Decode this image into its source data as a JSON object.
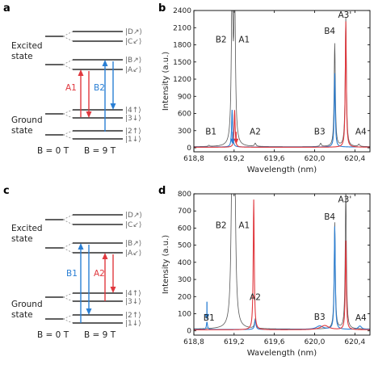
{
  "panels": {
    "a": "a",
    "b": "b",
    "c": "c",
    "d": "d"
  },
  "diagram_a": {
    "excited_label": [
      "Excited",
      "state"
    ],
    "ground_label": [
      "Ground",
      "state"
    ],
    "field_left": "B = 0 T",
    "field_right": "B = 9 T",
    "excited_levels": [
      "|D↗⟩",
      "|C↙⟩",
      "|B↗⟩",
      "|A↙⟩"
    ],
    "ground_levels": [
      "|4↑⟩",
      "|3↓⟩",
      "|2↑⟩",
      "|1↓⟩"
    ],
    "transitions": [
      {
        "name": "A1",
        "color": "#e0383e"
      },
      {
        "name": "B2",
        "color": "#2a7fd4"
      }
    ]
  },
  "diagram_c": {
    "excited_label": [
      "Excited",
      "state"
    ],
    "ground_label": [
      "Ground",
      "state"
    ],
    "field_left": "B = 0 T",
    "field_right": "B = 9 T",
    "excited_levels": [
      "|D↗⟩",
      "|C↙⟩",
      "|B↗⟩",
      "|A↙⟩"
    ],
    "ground_levels": [
      "|4↑⟩",
      "|3↓⟩",
      "|2↑⟩",
      "|1↓⟩"
    ],
    "transitions": [
      {
        "name": "B1",
        "color": "#2a7fd4"
      },
      {
        "name": "A2",
        "color": "#e0383e"
      }
    ]
  },
  "chart_data": [
    {
      "type": "line",
      "xlabel": "Wavelength (nm)",
      "ylabel": "Intensity (a.u.)",
      "xlim": [
        618.8,
        620.55
      ],
      "ylim": [
        -70,
        2400
      ],
      "xticks": [
        "618,8",
        "619,2",
        "619,6",
        "620,0",
        "620,4"
      ],
      "xtick_values": [
        618.8,
        619.2,
        619.6,
        620.0,
        620.4
      ],
      "yticks": [
        "0",
        "300",
        "600",
        "900",
        "1200",
        "1500",
        "1800",
        "2100",
        "2400"
      ],
      "ytick_values": [
        0,
        300,
        600,
        900,
        1200,
        1500,
        1800,
        2100,
        2400
      ],
      "annotations": [
        {
          "text": "B2",
          "x": 619.07,
          "y": 1840
        },
        {
          "text": "A1",
          "x": 619.3,
          "y": 1840
        },
        {
          "text": "B4",
          "x": 620.15,
          "y": 1990
        },
        {
          "text": "A3'",
          "x": 620.3,
          "y": 2270
        },
        {
          "text": "B1",
          "x": 618.97,
          "y": 230
        },
        {
          "text": "A2",
          "x": 619.41,
          "y": 230
        },
        {
          "text": "B3",
          "x": 620.05,
          "y": 230
        },
        {
          "text": "A4",
          "x": 620.46,
          "y": 230
        }
      ],
      "arrows": [
        {
          "color": "#2a7fd4",
          "x": 619.185,
          "y_top": 280,
          "y_bottom": 60
        },
        {
          "color": "#e0383e",
          "x": 619.22,
          "y_top": 280,
          "y_bottom": 60
        }
      ],
      "series": [
        {
          "color": "#555555",
          "baseline": 18,
          "peaks": [
            {
              "x": 618.95,
              "h": 20,
              "w": 0.008
            },
            {
              "x": 619.18,
              "h": 2700,
              "w": 0.009
            },
            {
              "x": 619.205,
              "h": 2700,
              "w": 0.009
            },
            {
              "x": 619.41,
              "h": 55,
              "w": 0.009
            },
            {
              "x": 620.06,
              "h": 55,
              "w": 0.009
            },
            {
              "x": 620.2,
              "h": 1800,
              "w": 0.007
            },
            {
              "x": 620.31,
              "h": 2250,
              "w": 0.007
            },
            {
              "x": 620.44,
              "h": 40,
              "w": 0.009
            }
          ]
        },
        {
          "color": "#2a7fd4",
          "baseline": 14,
          "peaks": [
            {
              "x": 619.18,
              "h": 650,
              "w": 0.006
            },
            {
              "x": 620.2,
              "h": 1290,
              "w": 0.006
            }
          ]
        },
        {
          "color": "#e0383e",
          "baseline": 10,
          "peaks": [
            {
              "x": 619.205,
              "h": 650,
              "w": 0.006
            },
            {
              "x": 620.31,
              "h": 2200,
              "w": 0.006
            }
          ]
        }
      ]
    },
    {
      "type": "line",
      "xlabel": "Wavelength (nm)",
      "ylabel": "Intensity (a.u.)",
      "xlim": [
        618.8,
        620.55
      ],
      "ylim": [
        -25,
        800
      ],
      "xticks": [
        "618,8",
        "619,2",
        "619,6",
        "620,0",
        "620,4"
      ],
      "xtick_values": [
        618.8,
        619.2,
        619.6,
        620.0,
        620.4
      ],
      "yticks": [
        "0",
        "100",
        "200",
        "300",
        "400",
        "500",
        "600",
        "700",
        "800"
      ],
      "ytick_values": [
        0,
        100,
        200,
        300,
        400,
        500,
        600,
        700,
        800
      ],
      "annotations": [
        {
          "text": "B2",
          "x": 619.07,
          "y": 600
        },
        {
          "text": "A1",
          "x": 619.3,
          "y": 600
        },
        {
          "text": "B4",
          "x": 620.15,
          "y": 650
        },
        {
          "text": "A3'",
          "x": 620.3,
          "y": 750
        },
        {
          "text": "A2",
          "x": 619.41,
          "y": 180
        },
        {
          "text": "B1",
          "x": 618.95,
          "y": 60
        },
        {
          "text": "B3",
          "x": 620.05,
          "y": 65
        },
        {
          "text": "A4",
          "x": 620.46,
          "y": 60
        }
      ],
      "arrows": [
        {
          "color": "#2a7fd4",
          "x": 618.93,
          "y_top": 170,
          "y_bottom": 65
        }
      ],
      "series": [
        {
          "color": "#555555",
          "baseline": 10,
          "peaks": [
            {
              "x": 619.18,
              "h": 900,
              "w": 0.012
            },
            {
              "x": 619.205,
              "h": 900,
              "w": 0.012
            },
            {
              "x": 619.41,
              "h": 55,
              "w": 0.009
            },
            {
              "x": 620.2,
              "h": 620,
              "w": 0.007
            },
            {
              "x": 620.31,
              "h": 800,
              "w": 0.007
            }
          ]
        },
        {
          "color": "#2a7fd4",
          "baseline": 8,
          "peaks": [
            {
              "x": 618.93,
              "h": 45,
              "w": 0.006
            },
            {
              "x": 619.41,
              "h": 55,
              "w": 0.008
            },
            {
              "x": 620.05,
              "h": 20,
              "w": 0.04
            },
            {
              "x": 620.2,
              "h": 600,
              "w": 0.006
            },
            {
              "x": 620.45,
              "h": 20,
              "w": 0.02
            }
          ]
        },
        {
          "color": "#e0383e",
          "baseline": 6,
          "peaks": [
            {
              "x": 619.395,
              "h": 760,
              "w": 0.006
            },
            {
              "x": 620.1,
              "h": 25,
              "w": 0.05
            },
            {
              "x": 620.31,
              "h": 520,
              "w": 0.006
            }
          ]
        }
      ]
    }
  ]
}
